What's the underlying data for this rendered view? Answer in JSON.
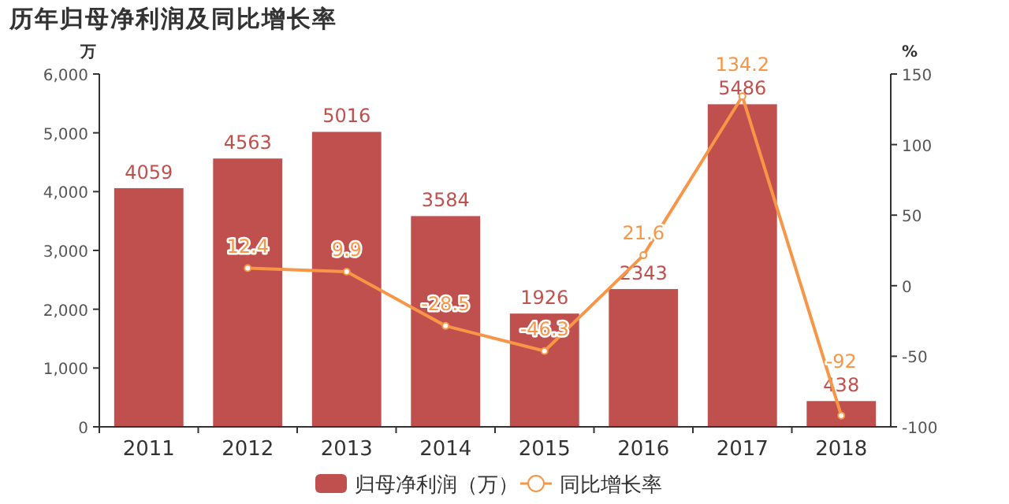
{
  "chart_data": {
    "type": "bar",
    "title": "历年归母净利润及同比增长率",
    "ylabel": "万",
    "y2label": "%",
    "categories": [
      "2011",
      "2012",
      "2013",
      "2014",
      "2015",
      "2016",
      "2017",
      "2018"
    ],
    "series": [
      {
        "name": "归母净利润（万）",
        "color": "#c0504d",
        "values": [
          4059,
          4563,
          5016,
          3584,
          1926,
          2343,
          5486,
          438
        ]
      },
      {
        "name": "同比增长率",
        "type": "line",
        "axis": "y2",
        "color": "#f79646",
        "values": [
          null,
          12.4,
          9.9,
          -28.5,
          -46.3,
          21.6,
          134.2,
          -92
        ],
        "marker": "circle"
      }
    ],
    "ylim": [
      0,
      6000
    ],
    "yticks": [
      {
        "value": 0,
        "label": "0"
      },
      {
        "value": 1000,
        "label": "1,000"
      },
      {
        "value": 2000,
        "label": "2,000"
      },
      {
        "value": 3000,
        "label": "3,000"
      },
      {
        "value": 4000,
        "label": "4,000"
      },
      {
        "value": 5000,
        "label": "5,000"
      },
      {
        "value": 6000,
        "label": "6,000"
      }
    ],
    "y2lim": [
      -100,
      150
    ],
    "y2ticks": [
      -100,
      -50,
      0,
      50,
      100,
      150
    ],
    "data_labels": true,
    "legend": "bottom",
    "grid": false
  }
}
